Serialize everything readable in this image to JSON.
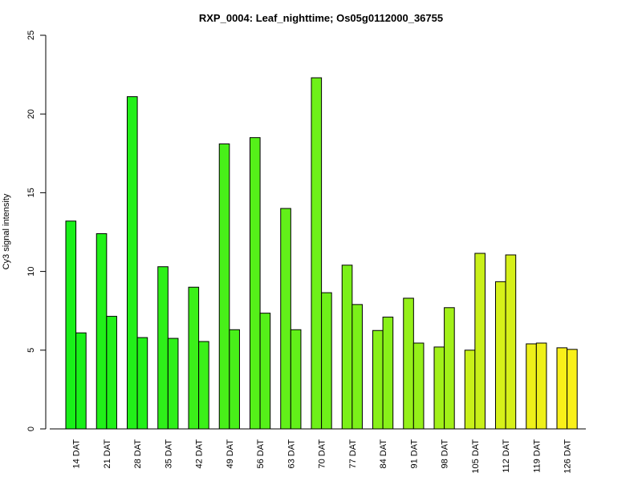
{
  "chart_data": {
    "type": "bar",
    "title": "RXP_0004: Leaf_nighttime; Os05g0112000_36755",
    "xlabel": "",
    "ylabel": "Cy3 signal intensity",
    "ylim": [
      0,
      25
    ],
    "yticks": [
      0,
      5,
      10,
      15,
      20,
      25
    ],
    "categories": [
      "14 DAT",
      "21 DAT",
      "28 DAT",
      "35 DAT",
      "42 DAT",
      "49 DAT",
      "56 DAT",
      "63 DAT",
      "70 DAT",
      "77 DAT",
      "84 DAT",
      "91 DAT",
      "98 DAT",
      "105 DAT",
      "112 DAT",
      "119 DAT",
      "126 DAT"
    ],
    "series": [
      {
        "values": [
          13.2,
          12.4,
          21.1,
          10.3,
          9.0,
          18.1,
          18.5,
          14.0,
          22.3,
          10.4,
          6.25,
          8.3,
          5.2,
          5.0,
          9.35,
          5.4,
          5.15
        ]
      },
      {
        "values": [
          6.1,
          7.15,
          5.8,
          5.75,
          5.55,
          6.3,
          7.35,
          6.3,
          8.65,
          7.9,
          7.1,
          5.45,
          7.7,
          11.15,
          11.05,
          5.45,
          5.05
        ]
      }
    ],
    "colors": [
      "#19f019",
      "#21f019",
      "#22f019",
      "#2ef019",
      "#3bf019",
      "#48f019",
      "#55f019",
      "#62f019",
      "#6ef019",
      "#7bf019",
      "#88f019",
      "#95f019",
      "#a2f019",
      "#c9f019",
      "#d6f019",
      "#eef019",
      "#f9f019"
    ],
    "grid": false,
    "legend": "none"
  }
}
